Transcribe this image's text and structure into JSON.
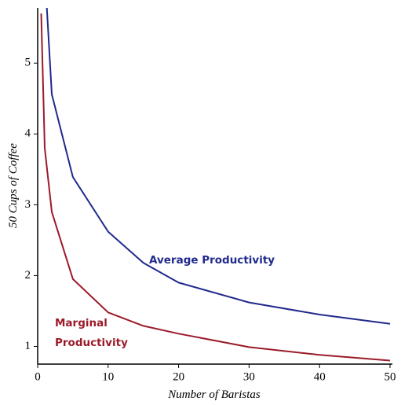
{
  "chart_data": {
    "type": "line",
    "x_label": "Number of Baristas",
    "y_label": "50 Cups of Coffee",
    "xlim": [
      0,
      50
    ],
    "ylim": [
      0.75,
      5.78
    ],
    "xticks": [
      0,
      10,
      20,
      30,
      40,
      50
    ],
    "yticks": [
      1,
      2,
      3,
      4,
      5
    ],
    "grid": false,
    "series": [
      {
        "label": [
          "Average Productivity"
        ],
        "color": "#1f2a8c",
        "x": [
          1.3,
          2,
          5,
          10,
          15,
          20,
          30,
          40,
          50
        ],
        "values": [
          5.78,
          4.56,
          3.39,
          2.62,
          2.18,
          1.9,
          1.62,
          1.45,
          1.32
        ]
      },
      {
        "label": [
          "Marginal",
          "Productivity"
        ],
        "color": "#9b1b2a",
        "x": [
          0.5,
          1,
          2,
          5,
          10,
          15,
          20,
          30,
          40,
          50
        ],
        "values": [
          5.7,
          3.8,
          2.9,
          1.95,
          1.48,
          1.29,
          1.18,
          0.99,
          0.88,
          0.8
        ]
      }
    ]
  }
}
